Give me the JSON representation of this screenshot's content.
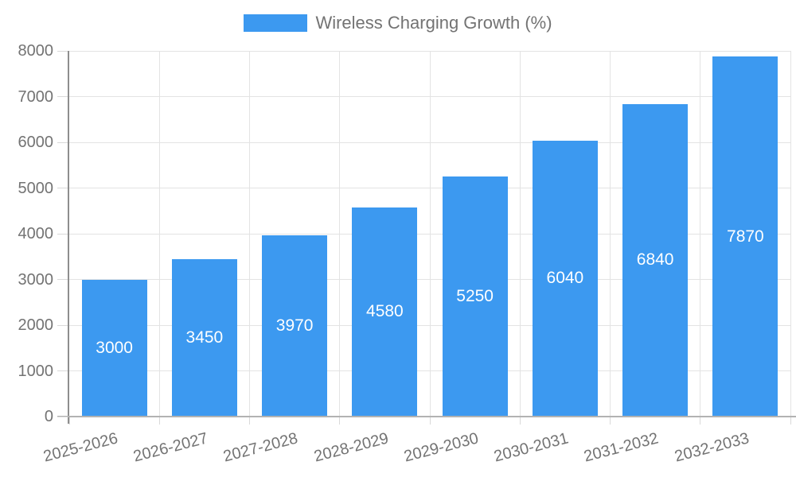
{
  "legend": {
    "items": [
      {
        "label": "Wireless Charging Growth (%)"
      }
    ]
  },
  "chart_data": {
    "type": "bar",
    "title": "Wireless Charging Growth (%)",
    "categories": [
      "2025-2026",
      "2026-2027",
      "2027-2028",
      "2028-2029",
      "2029-2030",
      "2030-2031",
      "2031-2032",
      "2032-2033"
    ],
    "values": [
      3000,
      3450,
      3970,
      4580,
      5250,
      6040,
      6840,
      7870
    ],
    "value_labels": [
      "3000",
      "3450",
      "3970",
      "4580",
      "5250",
      "6040",
      "6840",
      "7870"
    ],
    "xlabel": "",
    "ylabel": "",
    "ylim": [
      0,
      8000
    ],
    "yticks": [
      "0",
      "1000",
      "2000",
      "3000",
      "4000",
      "5000",
      "6000",
      "7000",
      "8000"
    ],
    "grid": true,
    "legend_position": "top",
    "value_label_position": "inside-center",
    "x_label_rotation_deg": -14.5,
    "style": {
      "bar_color": "#3c99f0",
      "grid_color": "#e3e3e3",
      "tick_color": "#d9d9d9",
      "y_axis_color": "#8e8e8e",
      "x_axis_color": "#b2b2b2",
      "text_color": "#737373",
      "value_label_color": "#ffffff",
      "background": "#ffffff"
    }
  }
}
